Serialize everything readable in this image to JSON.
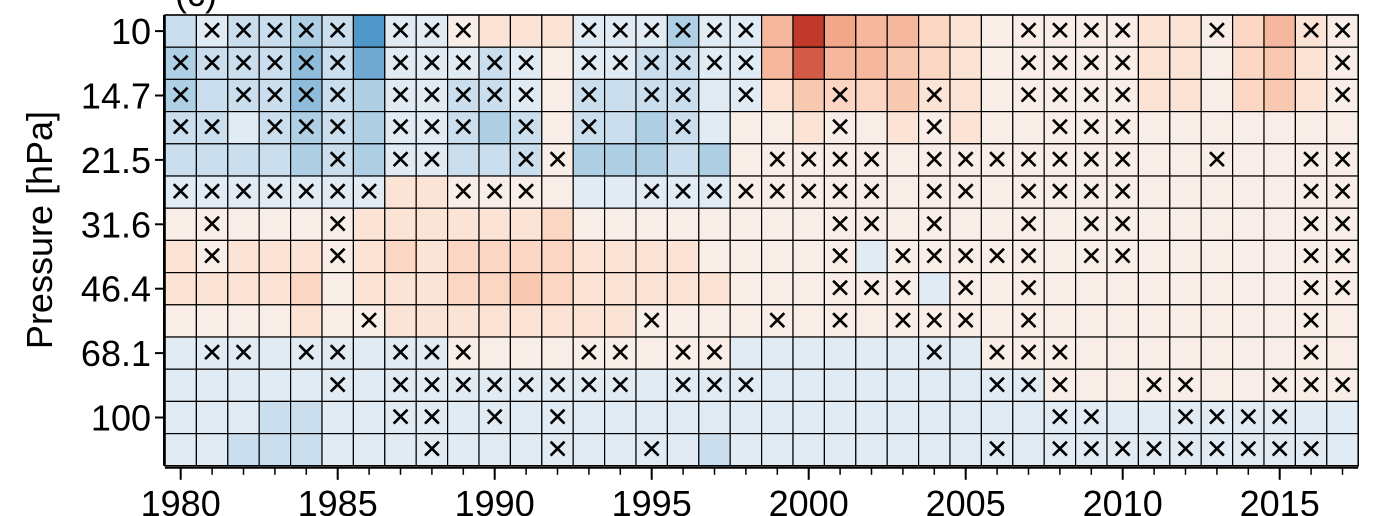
{
  "panel_label": "(c)",
  "chart_data": {
    "type": "heatmap",
    "title": "",
    "xlabel": "",
    "ylabel": "Pressure [hPa]",
    "years": [
      1980,
      1981,
      1982,
      1983,
      1984,
      1985,
      1986,
      1987,
      1988,
      1989,
      1990,
      1991,
      1992,
      1993,
      1994,
      1995,
      1996,
      1997,
      1998,
      1999,
      2000,
      2001,
      2002,
      2003,
      2004,
      2005,
      2006,
      2007,
      2008,
      2009,
      2010,
      2011,
      2012,
      2013,
      2014,
      2015,
      2016,
      2017
    ],
    "x_ticks": [
      1980,
      1985,
      1990,
      1995,
      2000,
      2005,
      2010,
      2015
    ],
    "y_tick_labels": [
      "10",
      "14.7",
      "21.5",
      "31.6",
      "46.4",
      "68.1",
      "100"
    ],
    "colormap": "RdBu_r",
    "colors": {
      "neutral": "#f7f7f7",
      "warm_max": "#c0392b",
      "cool_max": "#4f97c8",
      "grid": "#000000"
    },
    "row_levels": [
      "10",
      "12",
      "14.7",
      "18",
      "21.5",
      "26",
      "31.6",
      "38",
      "46.4",
      "56",
      "68.1",
      "82",
      "100",
      "120"
    ],
    "values": [
      [
        -2,
        -1,
        -2,
        -2,
        -3,
        -2,
        -6,
        -1,
        -1,
        1,
        2,
        2,
        2,
        -1,
        -1,
        -1,
        -3,
        -1,
        -1,
        5,
        10,
        6,
        5,
        5,
        3,
        2,
        1,
        1,
        1,
        1,
        1,
        2,
        2,
        1,
        3,
        5,
        2,
        1
      ],
      [
        -3,
        -2,
        -2,
        -2,
        -4,
        -2,
        -5,
        -1,
        -1,
        -1,
        -2,
        -1,
        1,
        -1,
        -1,
        -2,
        -2,
        -1,
        -1,
        5,
        9,
        5,
        5,
        4,
        3,
        2,
        1,
        1,
        1,
        1,
        1,
        2,
        2,
        1,
        3,
        4,
        2,
        1
      ],
      [
        -3,
        -2,
        -2,
        -2,
        -4,
        -2,
        -3,
        -1,
        -1,
        -2,
        -2,
        -1,
        1,
        -2,
        -2,
        -2,
        -2,
        -1,
        -1,
        2,
        4,
        3,
        3,
        4,
        2,
        2,
        1,
        1,
        1,
        1,
        1,
        2,
        2,
        1,
        3,
        4,
        2,
        1
      ],
      [
        -2,
        -2,
        -1,
        -2,
        -3,
        -2,
        -3,
        -1,
        -1,
        -2,
        -3,
        -2,
        1,
        -2,
        -2,
        -3,
        -2,
        -1,
        1,
        1,
        2,
        1,
        1,
        2,
        1,
        2,
        1,
        1,
        1,
        1,
        1,
        1,
        1,
        1,
        1,
        1,
        1,
        1
      ],
      [
        -2,
        -2,
        -2,
        -2,
        -3,
        -2,
        -3,
        -1,
        -1,
        -2,
        -2,
        -2,
        1,
        -3,
        -3,
        -3,
        -2,
        -3,
        1,
        1,
        1,
        1,
        1,
        1,
        1,
        1,
        1,
        1,
        1,
        1,
        1,
        1,
        1,
        1,
        1,
        1,
        1,
        1
      ],
      [
        -1,
        -1,
        -1,
        -1,
        -1,
        -1,
        -1,
        2,
        2,
        1,
        1,
        1,
        1,
        -1,
        -1,
        -1,
        -1,
        -1,
        1,
        1,
        1,
        1,
        1,
        1,
        1,
        1,
        1,
        1,
        1,
        1,
        1,
        1,
        1,
        1,
        1,
        1,
        1,
        1
      ],
      [
        1,
        1,
        1,
        1,
        1,
        1,
        2,
        2,
        2,
        2,
        2,
        2,
        3,
        1,
        1,
        1,
        1,
        1,
        1,
        1,
        1,
        1,
        1,
        1,
        1,
        1,
        1,
        1,
        1,
        1,
        1,
        1,
        1,
        1,
        1,
        1,
        1,
        1
      ],
      [
        2,
        1,
        2,
        2,
        2,
        1,
        2,
        3,
        2,
        3,
        3,
        3,
        3,
        2,
        2,
        2,
        2,
        1,
        1,
        1,
        1,
        1,
        -1,
        1,
        1,
        1,
        1,
        1,
        1,
        1,
        1,
        1,
        1,
        1,
        1,
        1,
        1,
        1
      ],
      [
        2,
        2,
        2,
        2,
        3,
        1,
        2,
        2,
        2,
        3,
        3,
        4,
        3,
        2,
        2,
        2,
        2,
        2,
        1,
        1,
        1,
        1,
        1,
        1,
        -1,
        1,
        1,
        1,
        1,
        1,
        1,
        1,
        1,
        1,
        1,
        1,
        1,
        1
      ],
      [
        1,
        1,
        1,
        1,
        2,
        1,
        1,
        2,
        2,
        2,
        2,
        2,
        2,
        2,
        2,
        1,
        1,
        1,
        1,
        1,
        1,
        1,
        1,
        1,
        1,
        1,
        1,
        1,
        1,
        1,
        1,
        1,
        1,
        1,
        1,
        1,
        1,
        1
      ],
      [
        -1,
        -1,
        -1,
        -1,
        -1,
        -1,
        -1,
        -1,
        -1,
        1,
        1,
        1,
        1,
        1,
        1,
        1,
        1,
        1,
        -1,
        -1,
        -1,
        -1,
        -1,
        -1,
        -1,
        -1,
        1,
        1,
        1,
        1,
        1,
        1,
        1,
        1,
        1,
        1,
        1,
        1
      ],
      [
        -1,
        -1,
        -1,
        -1,
        -1,
        -1,
        -1,
        -1,
        -1,
        -1,
        -1,
        -1,
        -1,
        -1,
        -1,
        -1,
        -1,
        -1,
        -1,
        -1,
        -1,
        -1,
        -1,
        -1,
        -1,
        -1,
        -1,
        -1,
        1,
        1,
        1,
        1,
        1,
        1,
        1,
        1,
        1,
        1
      ],
      [
        -1,
        -1,
        -1,
        -2,
        -2,
        -1,
        -1,
        -1,
        -1,
        -1,
        -1,
        -1,
        -1,
        -1,
        -1,
        -1,
        -1,
        -1,
        -1,
        -1,
        -1,
        -1,
        -1,
        -1,
        -1,
        -1,
        -1,
        -1,
        -1,
        -1,
        -1,
        -1,
        -1,
        -1,
        -1,
        -1,
        -1,
        -1
      ],
      [
        -1,
        -1,
        -2,
        -2,
        -2,
        -1,
        -1,
        -1,
        -1,
        -1,
        -1,
        -1,
        -1,
        -1,
        -1,
        -1,
        -1,
        -2,
        -1,
        -1,
        -1,
        -1,
        -1,
        -1,
        -1,
        -1,
        -1,
        -1,
        -1,
        -1,
        -1,
        -1,
        -1,
        -1,
        -1,
        -1,
        -1,
        -1
      ]
    ],
    "crosses": [
      [
        0,
        1,
        1,
        1,
        1,
        1,
        0,
        1,
        1,
        1,
        0,
        0,
        0,
        1,
        1,
        1,
        1,
        1,
        1,
        0,
        0,
        0,
        0,
        0,
        0,
        0,
        0,
        1,
        1,
        1,
        1,
        0,
        0,
        1,
        0,
        0,
        1,
        1
      ],
      [
        1,
        1,
        1,
        1,
        1,
        1,
        0,
        1,
        1,
        1,
        1,
        1,
        0,
        1,
        1,
        1,
        1,
        1,
        1,
        0,
        0,
        0,
        0,
        0,
        0,
        0,
        0,
        1,
        1,
        1,
        1,
        0,
        0,
        0,
        0,
        0,
        0,
        1
      ],
      [
        1,
        0,
        1,
        1,
        1,
        1,
        0,
        1,
        1,
        1,
        1,
        1,
        0,
        1,
        0,
        1,
        1,
        0,
        1,
        0,
        0,
        1,
        0,
        0,
        1,
        0,
        0,
        1,
        1,
        1,
        1,
        0,
        0,
        0,
        0,
        0,
        0,
        1
      ],
      [
        1,
        1,
        0,
        1,
        1,
        1,
        0,
        1,
        1,
        1,
        0,
        1,
        0,
        1,
        0,
        0,
        1,
        0,
        0,
        0,
        0,
        1,
        0,
        0,
        1,
        0,
        0,
        0,
        1,
        1,
        1,
        0,
        0,
        0,
        0,
        0,
        0,
        0
      ],
      [
        0,
        0,
        0,
        0,
        0,
        1,
        0,
        1,
        1,
        0,
        0,
        1,
        1,
        0,
        0,
        0,
        0,
        0,
        0,
        1,
        1,
        1,
        1,
        0,
        1,
        1,
        1,
        1,
        1,
        1,
        1,
        0,
        0,
        1,
        0,
        0,
        1,
        1
      ],
      [
        1,
        1,
        1,
        1,
        1,
        1,
        1,
        0,
        0,
        1,
        1,
        1,
        0,
        0,
        0,
        1,
        1,
        1,
        1,
        1,
        1,
        1,
        1,
        0,
        1,
        1,
        0,
        1,
        1,
        1,
        1,
        0,
        0,
        0,
        0,
        0,
        1,
        1
      ],
      [
        0,
        1,
        0,
        0,
        0,
        1,
        0,
        0,
        0,
        0,
        0,
        0,
        0,
        0,
        0,
        0,
        0,
        0,
        0,
        0,
        0,
        1,
        1,
        0,
        1,
        0,
        0,
        1,
        0,
        1,
        1,
        0,
        0,
        0,
        0,
        0,
        1,
        1
      ],
      [
        0,
        1,
        0,
        0,
        0,
        1,
        0,
        0,
        0,
        0,
        0,
        0,
        0,
        0,
        0,
        0,
        0,
        0,
        0,
        0,
        0,
        1,
        0,
        1,
        1,
        1,
        1,
        1,
        0,
        1,
        1,
        0,
        0,
        0,
        0,
        0,
        1,
        1
      ],
      [
        0,
        0,
        0,
        0,
        0,
        0,
        0,
        0,
        0,
        0,
        0,
        0,
        0,
        0,
        0,
        0,
        0,
        0,
        0,
        0,
        0,
        1,
        1,
        1,
        0,
        1,
        0,
        1,
        0,
        0,
        0,
        0,
        0,
        0,
        0,
        0,
        1,
        1
      ],
      [
        0,
        0,
        0,
        0,
        0,
        0,
        1,
        0,
        0,
        0,
        0,
        0,
        0,
        0,
        0,
        1,
        0,
        0,
        0,
        1,
        0,
        1,
        0,
        1,
        1,
        1,
        0,
        1,
        0,
        0,
        0,
        0,
        0,
        0,
        0,
        0,
        1,
        0
      ],
      [
        0,
        1,
        1,
        0,
        1,
        1,
        0,
        1,
        1,
        1,
        0,
        0,
        0,
        1,
        1,
        0,
        1,
        1,
        0,
        0,
        0,
        0,
        0,
        0,
        1,
        0,
        1,
        1,
        1,
        0,
        0,
        0,
        0,
        0,
        0,
        0,
        1,
        0
      ],
      [
        0,
        0,
        0,
        0,
        0,
        1,
        0,
        1,
        1,
        1,
        1,
        1,
        1,
        1,
        1,
        0,
        1,
        1,
        1,
        0,
        0,
        0,
        0,
        0,
        0,
        0,
        1,
        1,
        1,
        0,
        0,
        1,
        1,
        0,
        0,
        1,
        1,
        1
      ],
      [
        0,
        0,
        0,
        0,
        0,
        0,
        0,
        1,
        1,
        0,
        1,
        0,
        1,
        0,
        0,
        0,
        0,
        0,
        0,
        0,
        0,
        0,
        0,
        0,
        0,
        0,
        0,
        0,
        1,
        1,
        0,
        0,
        1,
        1,
        1,
        1,
        0,
        0
      ],
      [
        0,
        0,
        0,
        0,
        0,
        0,
        0,
        0,
        1,
        0,
        0,
        0,
        1,
        0,
        0,
        1,
        0,
        0,
        0,
        0,
        0,
        0,
        0,
        0,
        0,
        0,
        1,
        0,
        1,
        1,
        1,
        1,
        1,
        1,
        1,
        1,
        1,
        0
      ]
    ],
    "grid": true,
    "legend": "none"
  }
}
